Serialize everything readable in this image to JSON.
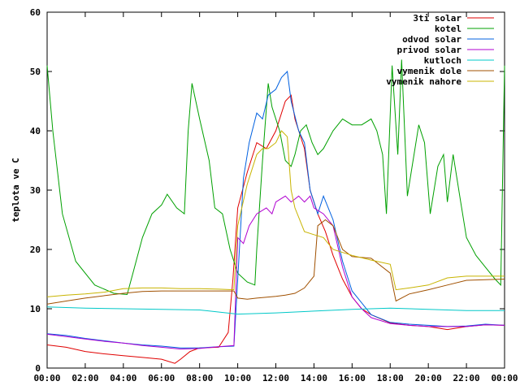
{
  "chart_data": {
    "type": "line",
    "title": "",
    "xlabel": "",
    "ylabel": "teplota ve C",
    "xlim": [
      0,
      24
    ],
    "ylim": [
      0,
      60
    ],
    "grid": false,
    "legend": "top-right",
    "x_ticks": [
      "00:00",
      "02:00",
      "04:00",
      "06:00",
      "08:00",
      "10:00",
      "12:00",
      "14:00",
      "16:00",
      "18:00",
      "20:00",
      "22:00",
      "00:00"
    ],
    "y_ticks": [
      "0",
      "10",
      "20",
      "30",
      "40",
      "50",
      "60"
    ],
    "series": [
      {
        "name": "3ti solar",
        "color": "#e00000",
        "points": [
          [
            0,
            3.9
          ],
          [
            1,
            3.5
          ],
          [
            2,
            2.8
          ],
          [
            3,
            2.4
          ],
          [
            4,
            2.1
          ],
          [
            5,
            1.8
          ],
          [
            6,
            1.5
          ],
          [
            6.7,
            0.8
          ],
          [
            7,
            1.5
          ],
          [
            7.5,
            2.8
          ],
          [
            8,
            3.4
          ],
          [
            9,
            3.5
          ],
          [
            9.5,
            6
          ],
          [
            9.75,
            15
          ],
          [
            10,
            27
          ],
          [
            10.5,
            33
          ],
          [
            11,
            38
          ],
          [
            11.5,
            37
          ],
          [
            12,
            40
          ],
          [
            12.5,
            45
          ],
          [
            12.8,
            46
          ],
          [
            13,
            42
          ],
          [
            13.5,
            37
          ],
          [
            13.8,
            30
          ],
          [
            14.2,
            26
          ],
          [
            14.6,
            23
          ],
          [
            15,
            19
          ],
          [
            15.5,
            15
          ],
          [
            16,
            12
          ],
          [
            16.5,
            10
          ],
          [
            17,
            9
          ],
          [
            18,
            7.6
          ],
          [
            19,
            7.2
          ],
          [
            20,
            7
          ],
          [
            21,
            6.5
          ],
          [
            22,
            7
          ],
          [
            23,
            7.3
          ],
          [
            24,
            7.2
          ]
        ]
      },
      {
        "name": "kotel",
        "color": "#00a000",
        "points": [
          [
            0,
            51
          ],
          [
            0.3,
            40
          ],
          [
            0.8,
            26
          ],
          [
            1.5,
            18
          ],
          [
            2.5,
            14
          ],
          [
            3.5,
            12.6
          ],
          [
            4.2,
            12.4
          ],
          [
            4.5,
            16
          ],
          [
            5,
            22
          ],
          [
            5.5,
            26
          ],
          [
            6,
            27.5
          ],
          [
            6.3,
            29.3
          ],
          [
            6.8,
            27
          ],
          [
            7.2,
            26
          ],
          [
            7.4,
            40
          ],
          [
            7.6,
            48
          ],
          [
            8,
            42
          ],
          [
            8.5,
            35
          ],
          [
            8.8,
            27
          ],
          [
            9.2,
            26
          ],
          [
            9.6,
            20
          ],
          [
            10,
            16
          ],
          [
            10.5,
            14.5
          ],
          [
            10.9,
            14
          ],
          [
            11,
            20
          ],
          [
            11.3,
            35
          ],
          [
            11.6,
            48
          ],
          [
            11.8,
            44
          ],
          [
            12.2,
            40
          ],
          [
            12.5,
            35
          ],
          [
            12.8,
            34
          ],
          [
            13,
            36
          ],
          [
            13.3,
            40
          ],
          [
            13.6,
            41
          ],
          [
            13.9,
            38
          ],
          [
            14.2,
            36
          ],
          [
            14.5,
            37
          ],
          [
            15,
            40
          ],
          [
            15.5,
            42
          ],
          [
            16,
            41
          ],
          [
            16.5,
            41
          ],
          [
            17,
            42
          ],
          [
            17.3,
            40
          ],
          [
            17.6,
            36
          ],
          [
            17.8,
            26
          ],
          [
            18.1,
            51
          ],
          [
            18.4,
            36
          ],
          [
            18.6,
            52
          ],
          [
            18.9,
            29
          ],
          [
            19.2,
            35
          ],
          [
            19.5,
            41
          ],
          [
            19.8,
            38
          ],
          [
            20.1,
            26
          ],
          [
            20.5,
            34
          ],
          [
            20.8,
            36
          ],
          [
            21,
            28
          ],
          [
            21.3,
            36
          ],
          [
            21.7,
            28
          ],
          [
            22,
            22
          ],
          [
            22.5,
            19
          ],
          [
            23,
            17
          ],
          [
            23.5,
            15
          ],
          [
            23.8,
            14
          ],
          [
            24,
            51
          ]
        ]
      },
      {
        "name": "odvod solar",
        "color": "#0060e0",
        "points": [
          [
            0,
            5.8
          ],
          [
            1,
            5.5
          ],
          [
            2,
            5
          ],
          [
            3,
            4.6
          ],
          [
            4,
            4.2
          ],
          [
            5,
            3.9
          ],
          [
            6,
            3.7
          ],
          [
            7,
            3.4
          ],
          [
            8,
            3.4
          ],
          [
            9,
            3.6
          ],
          [
            9.8,
            3.7
          ],
          [
            10,
            15
          ],
          [
            10.3,
            32
          ],
          [
            10.6,
            38
          ],
          [
            11,
            43
          ],
          [
            11.3,
            42
          ],
          [
            11.6,
            46
          ],
          [
            12,
            47
          ],
          [
            12.3,
            49
          ],
          [
            12.6,
            50
          ],
          [
            12.8,
            45
          ],
          [
            13.2,
            40
          ],
          [
            13.5,
            38
          ],
          [
            13.8,
            30
          ],
          [
            14.2,
            26
          ],
          [
            14.5,
            29
          ],
          [
            15,
            25
          ],
          [
            15.5,
            18
          ],
          [
            16,
            13
          ],
          [
            16.5,
            11
          ],
          [
            17,
            9
          ],
          [
            18,
            7.7
          ],
          [
            19,
            7.4
          ],
          [
            20,
            7.2
          ],
          [
            21,
            7
          ],
          [
            22,
            7.1
          ],
          [
            23,
            7.4
          ],
          [
            24,
            7.2
          ]
        ]
      },
      {
        "name": "privod solar",
        "color": "#b000d0",
        "points": [
          [
            0,
            5.7
          ],
          [
            1,
            5.3
          ],
          [
            2,
            4.9
          ],
          [
            3,
            4.5
          ],
          [
            4,
            4.2
          ],
          [
            5,
            3.8
          ],
          [
            6,
            3.5
          ],
          [
            7,
            3.2
          ],
          [
            8,
            3.3
          ],
          [
            9,
            3.6
          ],
          [
            9.8,
            3.8
          ],
          [
            10,
            22
          ],
          [
            10.3,
            21
          ],
          [
            10.6,
            24
          ],
          [
            11,
            26
          ],
          [
            11.5,
            27
          ],
          [
            11.8,
            26
          ],
          [
            12,
            28
          ],
          [
            12.5,
            29
          ],
          [
            12.8,
            28
          ],
          [
            13.2,
            29
          ],
          [
            13.5,
            28
          ],
          [
            13.8,
            29
          ],
          [
            14,
            27
          ],
          [
            14.5,
            26
          ],
          [
            15,
            24
          ],
          [
            15.5,
            17
          ],
          [
            16,
            12
          ],
          [
            16.5,
            10
          ],
          [
            17,
            8.5
          ],
          [
            18,
            7.5
          ],
          [
            19,
            7.2
          ],
          [
            20,
            7
          ],
          [
            21,
            7
          ],
          [
            22,
            7
          ],
          [
            23,
            7.3
          ],
          [
            24,
            7.2
          ]
        ]
      },
      {
        "name": "kutloch",
        "color": "#00c8c8",
        "points": [
          [
            0,
            10.3
          ],
          [
            2,
            10.1
          ],
          [
            4,
            10
          ],
          [
            6,
            9.9
          ],
          [
            8,
            9.8
          ],
          [
            10,
            9.1
          ],
          [
            12,
            9.3
          ],
          [
            14,
            9.6
          ],
          [
            16,
            9.9
          ],
          [
            18,
            10.1
          ],
          [
            20,
            9.9
          ],
          [
            22,
            9.7
          ],
          [
            24,
            9.7
          ]
        ]
      },
      {
        "name": "vymenik dole",
        "color": "#a05000",
        "points": [
          [
            0,
            10.8
          ],
          [
            1,
            11.3
          ],
          [
            2,
            11.8
          ],
          [
            3,
            12.2
          ],
          [
            4,
            12.6
          ],
          [
            5,
            12.9
          ],
          [
            6,
            13
          ],
          [
            7,
            13
          ],
          [
            8,
            13
          ],
          [
            9,
            13
          ],
          [
            9.8,
            13
          ],
          [
            10,
            11.8
          ],
          [
            10.5,
            11.6
          ],
          [
            11,
            11.8
          ],
          [
            12,
            12.1
          ],
          [
            12.5,
            12.3
          ],
          [
            13,
            12.6
          ],
          [
            13.5,
            13.5
          ],
          [
            14,
            15.5
          ],
          [
            14.2,
            24
          ],
          [
            14.6,
            25
          ],
          [
            15,
            24
          ],
          [
            15.5,
            20
          ],
          [
            16,
            18.8
          ],
          [
            17,
            18.5
          ],
          [
            18,
            16
          ],
          [
            18.3,
            11.3
          ],
          [
            19,
            12.5
          ],
          [
            20,
            13.2
          ],
          [
            21,
            14
          ],
          [
            22,
            14.8
          ],
          [
            23,
            14.9
          ],
          [
            24,
            15
          ]
        ]
      },
      {
        "name": "vymenik nahore",
        "color": "#c8b400",
        "points": [
          [
            0,
            12
          ],
          [
            1,
            12.3
          ],
          [
            2,
            12.5
          ],
          [
            3,
            12.8
          ],
          [
            4,
            13.4
          ],
          [
            5,
            13.5
          ],
          [
            6,
            13.5
          ],
          [
            7,
            13.4
          ],
          [
            8,
            13.4
          ],
          [
            9,
            13.3
          ],
          [
            9.8,
            13.2
          ],
          [
            10,
            24
          ],
          [
            10.5,
            31
          ],
          [
            11,
            36
          ],
          [
            11.3,
            37
          ],
          [
            11.6,
            37
          ],
          [
            12,
            38
          ],
          [
            12.3,
            40
          ],
          [
            12.6,
            39
          ],
          [
            12.8,
            30
          ],
          [
            13,
            27
          ],
          [
            13.5,
            23
          ],
          [
            14,
            22.5
          ],
          [
            14.5,
            22
          ],
          [
            15,
            20
          ],
          [
            16,
            19
          ],
          [
            17,
            18.2
          ],
          [
            18,
            17.5
          ],
          [
            18.3,
            13.2
          ],
          [
            19,
            13.5
          ],
          [
            20,
            14
          ],
          [
            21,
            15.2
          ],
          [
            22,
            15.5
          ],
          [
            23,
            15.5
          ],
          [
            24,
            15.5
          ]
        ]
      }
    ]
  }
}
